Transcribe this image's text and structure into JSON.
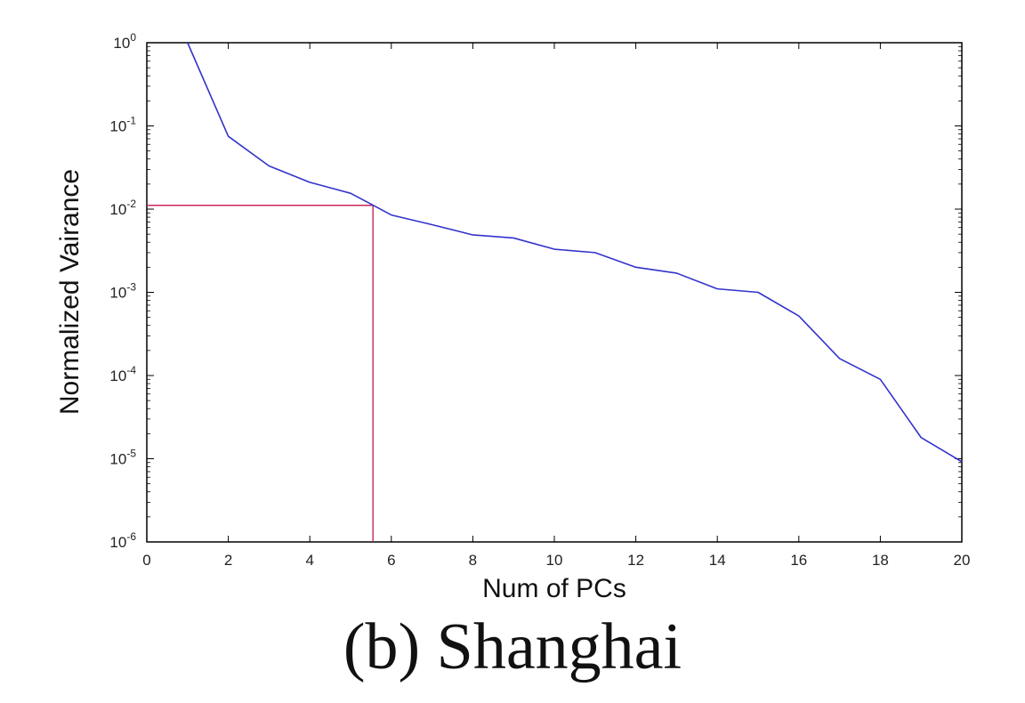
{
  "caption": "(b)  Shanghai",
  "chart_data": {
    "type": "line",
    "xlabel": "Num of PCs",
    "ylabel": "Normalized Vairance",
    "xlim": [
      0,
      20
    ],
    "ylim": [
      1e-06,
      1
    ],
    "yscale": "log",
    "grid": false,
    "x_ticks": [
      "0",
      "2",
      "4",
      "6",
      "8",
      "10",
      "12",
      "14",
      "16",
      "18",
      "20"
    ],
    "y_ticks": [
      {
        "base": "10",
        "exp": "0"
      },
      {
        "base": "10",
        "exp": "-1"
      },
      {
        "base": "10",
        "exp": "-2"
      },
      {
        "base": "10",
        "exp": "-3"
      },
      {
        "base": "10",
        "exp": "-4"
      },
      {
        "base": "10",
        "exp": "-5"
      },
      {
        "base": "10",
        "exp": "-6"
      }
    ],
    "series": [
      {
        "color": "#3333cc",
        "x": [
          1,
          2,
          3,
          4,
          5,
          5.5,
          6,
          7,
          8,
          9,
          10,
          11,
          12,
          13,
          14,
          15,
          16,
          17,
          18,
          19,
          20
        ],
        "y": [
          1.0,
          0.075,
          0.033,
          0.021,
          0.0155,
          0.0115,
          0.0085,
          0.0065,
          0.0049,
          0.0045,
          0.0033,
          0.003,
          0.002,
          0.0017,
          0.0011,
          0.001,
          0.00052,
          0.00016,
          9e-05,
          1.8e-05,
          9.2e-06
        ]
      }
    ],
    "reference_lines": {
      "color": "#c8285a",
      "x": 5.55,
      "y": 0.0111
    }
  }
}
